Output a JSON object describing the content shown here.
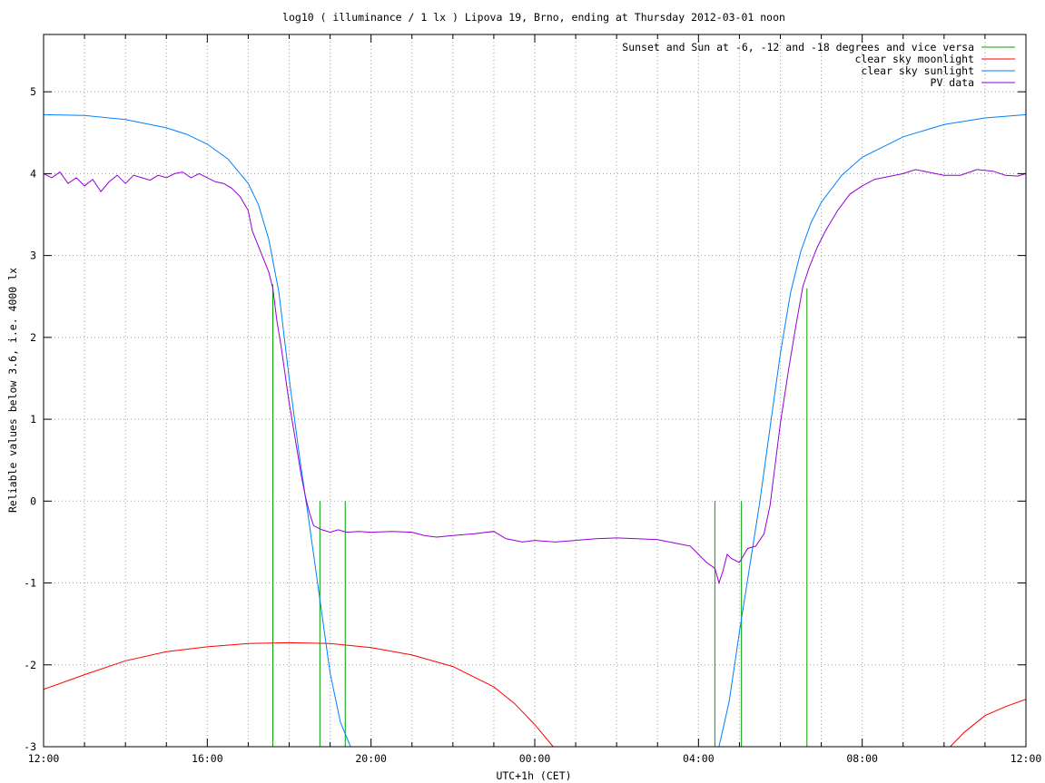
{
  "chart_data": {
    "type": "line",
    "title": "log10 ( illuminance / 1 lx ) Lipova 19, Brno, ending at Thursday 2012-03-01 noon",
    "xlabel": "UTC+1h (CET)",
    "ylabel": "Reliable values below 3.6, i.e. 4000 lx",
    "xlim": [
      0,
      24
    ],
    "ylim": [
      -3,
      5.7
    ],
    "x_ticks": [
      {
        "value": 0,
        "label": "12:00"
      },
      {
        "value": 4,
        "label": "16:00"
      },
      {
        "value": 8,
        "label": "20:00"
      },
      {
        "value": 12,
        "label": "00:00"
      },
      {
        "value": 16,
        "label": "04:00"
      },
      {
        "value": 20,
        "label": "08:00"
      },
      {
        "value": 24,
        "label": "12:00"
      }
    ],
    "y_ticks": [
      {
        "value": -3,
        "label": "-3"
      },
      {
        "value": -2,
        "label": "-2"
      },
      {
        "value": -1,
        "label": "-1"
      },
      {
        "value": 0,
        "label": "0"
      },
      {
        "value": 1,
        "label": "1"
      },
      {
        "value": 2,
        "label": "2"
      },
      {
        "value": 3,
        "label": "3"
      },
      {
        "value": 4,
        "label": "4"
      },
      {
        "value": 5,
        "label": "5"
      }
    ],
    "grid": true,
    "legend_position": "top-right",
    "series": [
      {
        "name": "Sunset and Sun at -6, -12 and -18 degrees and vice versa",
        "color": "#00a000",
        "kind": "vertical-markers",
        "markers": [
          {
            "x": 5.6,
            "y_top": 2.65
          },
          {
            "x": 6.75,
            "y_top": 0.0
          },
          {
            "x": 7.37,
            "y_top": 0.0
          },
          {
            "x": 16.4,
            "y_top": 0.0
          },
          {
            "x": 17.05,
            "y_top": 0.0
          },
          {
            "x": 18.65,
            "y_top": 2.6
          }
        ]
      },
      {
        "name": "clear sky moonlight",
        "color": "#ff0000",
        "segments": [
          [
            [
              0,
              -2.3
            ],
            [
              1,
              -2.12
            ],
            [
              2,
              -1.95
            ],
            [
              3,
              -1.84
            ],
            [
              4,
              -1.78
            ],
            [
              5,
              -1.74
            ],
            [
              6,
              -1.73
            ],
            [
              7,
              -1.74
            ],
            [
              8,
              -1.79
            ],
            [
              9,
              -1.88
            ],
            [
              10,
              -2.02
            ],
            [
              11,
              -2.27
            ],
            [
              11.5,
              -2.47
            ],
            [
              12,
              -2.73
            ],
            [
              12.45,
              -3.0
            ]
          ],
          [
            [
              22.15,
              -3.0
            ],
            [
              22.5,
              -2.82
            ],
            [
              23,
              -2.62
            ],
            [
              23.5,
              -2.51
            ],
            [
              24,
              -2.42
            ]
          ]
        ]
      },
      {
        "name": "clear sky sunlight",
        "color": "#0080ff",
        "segments": [
          [
            [
              0,
              4.72
            ],
            [
              1,
              4.71
            ],
            [
              2,
              4.66
            ],
            [
              3,
              4.56
            ],
            [
              3.5,
              4.48
            ],
            [
              4,
              4.36
            ],
            [
              4.5,
              4.18
            ],
            [
              5,
              3.88
            ],
            [
              5.25,
              3.62
            ],
            [
              5.5,
              3.2
            ],
            [
              5.75,
              2.55
            ],
            [
              6,
              1.5
            ],
            [
              6.25,
              0.55
            ],
            [
              6.5,
              -0.3
            ],
            [
              6.75,
              -1.2
            ],
            [
              7,
              -2.1
            ],
            [
              7.25,
              -2.7
            ],
            [
              7.5,
              -3.0
            ]
          ],
          [
            [
              16.5,
              -3.0
            ],
            [
              16.75,
              -2.45
            ],
            [
              17,
              -1.6
            ],
            [
              17.25,
              -0.8
            ],
            [
              17.5,
              0.0
            ],
            [
              17.75,
              0.9
            ],
            [
              18,
              1.8
            ],
            [
              18.25,
              2.55
            ],
            [
              18.5,
              3.05
            ],
            [
              18.75,
              3.4
            ],
            [
              19,
              3.65
            ],
            [
              19.5,
              3.98
            ],
            [
              20,
              4.2
            ],
            [
              21,
              4.45
            ],
            [
              22,
              4.6
            ],
            [
              23,
              4.68
            ],
            [
              24,
              4.72
            ]
          ]
        ]
      },
      {
        "name": "PV data",
        "color": "#9400d3",
        "segments": [
          [
            [
              0,
              4.0
            ],
            [
              0.2,
              3.95
            ],
            [
              0.4,
              4.02
            ],
            [
              0.6,
              3.88
            ],
            [
              0.8,
              3.95
            ],
            [
              1,
              3.85
            ],
            [
              1.2,
              3.93
            ],
            [
              1.4,
              3.78
            ],
            [
              1.6,
              3.9
            ],
            [
              1.8,
              3.98
            ],
            [
              2,
              3.88
            ],
            [
              2.2,
              3.98
            ],
            [
              2.4,
              3.95
            ],
            [
              2.6,
              3.92
            ],
            [
              2.8,
              3.98
            ],
            [
              3,
              3.95
            ],
            [
              3.2,
              4.0
            ],
            [
              3.4,
              4.02
            ],
            [
              3.6,
              3.95
            ],
            [
              3.8,
              4.0
            ],
            [
              4,
              3.95
            ],
            [
              4.2,
              3.9
            ],
            [
              4.4,
              3.88
            ],
            [
              4.6,
              3.82
            ],
            [
              4.8,
              3.72
            ],
            [
              5,
              3.55
            ],
            [
              5.1,
              3.3
            ],
            [
              5.3,
              3.05
            ],
            [
              5.5,
              2.8
            ],
            [
              5.6,
              2.6
            ],
            [
              5.7,
              2.2
            ],
            [
              5.8,
              1.9
            ],
            [
              5.9,
              1.55
            ],
            [
              6,
              1.2
            ],
            [
              6.15,
              0.75
            ],
            [
              6.3,
              0.3
            ],
            [
              6.4,
              0.05
            ],
            [
              6.5,
              -0.15
            ],
            [
              6.6,
              -0.3
            ],
            [
              6.8,
              -0.35
            ],
            [
              7,
              -0.38
            ],
            [
              7.2,
              -0.35
            ],
            [
              7.4,
              -0.38
            ],
            [
              7.7,
              -0.37
            ],
            [
              8,
              -0.38
            ],
            [
              8.5,
              -0.37
            ],
            [
              9,
              -0.38
            ],
            [
              9.3,
              -0.42
            ],
            [
              9.6,
              -0.44
            ],
            [
              10,
              -0.42
            ],
            [
              10.5,
              -0.4
            ],
            [
              11,
              -0.37
            ],
            [
              11.3,
              -0.46
            ],
            [
              11.7,
              -0.5
            ],
            [
              12,
              -0.48
            ],
            [
              12.5,
              -0.5
            ],
            [
              13,
              -0.48
            ],
            [
              13.5,
              -0.46
            ],
            [
              14,
              -0.45
            ],
            [
              14.5,
              -0.46
            ],
            [
              15,
              -0.47
            ],
            [
              15.5,
              -0.52
            ],
            [
              15.8,
              -0.55
            ],
            [
              16,
              -0.65
            ],
            [
              16.2,
              -0.75
            ],
            [
              16.4,
              -0.82
            ],
            [
              16.5,
              -1.0
            ],
            [
              16.6,
              -0.85
            ],
            [
              16.7,
              -0.65
            ],
            [
              16.8,
              -0.7
            ],
            [
              17,
              -0.75
            ],
            [
              17.2,
              -0.58
            ],
            [
              17.4,
              -0.55
            ],
            [
              17.6,
              -0.4
            ],
            [
              17.75,
              -0.05
            ],
            [
              17.9,
              0.55
            ],
            [
              18,
              0.95
            ],
            [
              18.2,
              1.6
            ],
            [
              18.4,
              2.2
            ],
            [
              18.55,
              2.62
            ],
            [
              18.7,
              2.85
            ],
            [
              18.9,
              3.1
            ],
            [
              19.1,
              3.3
            ],
            [
              19.4,
              3.55
            ],
            [
              19.7,
              3.75
            ],
            [
              20,
              3.85
            ],
            [
              20.3,
              3.93
            ],
            [
              20.6,
              3.96
            ],
            [
              21,
              4.0
            ],
            [
              21.3,
              4.05
            ],
            [
              21.6,
              4.02
            ],
            [
              22,
              3.98
            ],
            [
              22.4,
              3.98
            ],
            [
              22.8,
              4.05
            ],
            [
              23.2,
              4.03
            ],
            [
              23.5,
              3.98
            ],
            [
              23.8,
              3.97
            ],
            [
              24,
              4.0
            ]
          ]
        ]
      }
    ]
  }
}
